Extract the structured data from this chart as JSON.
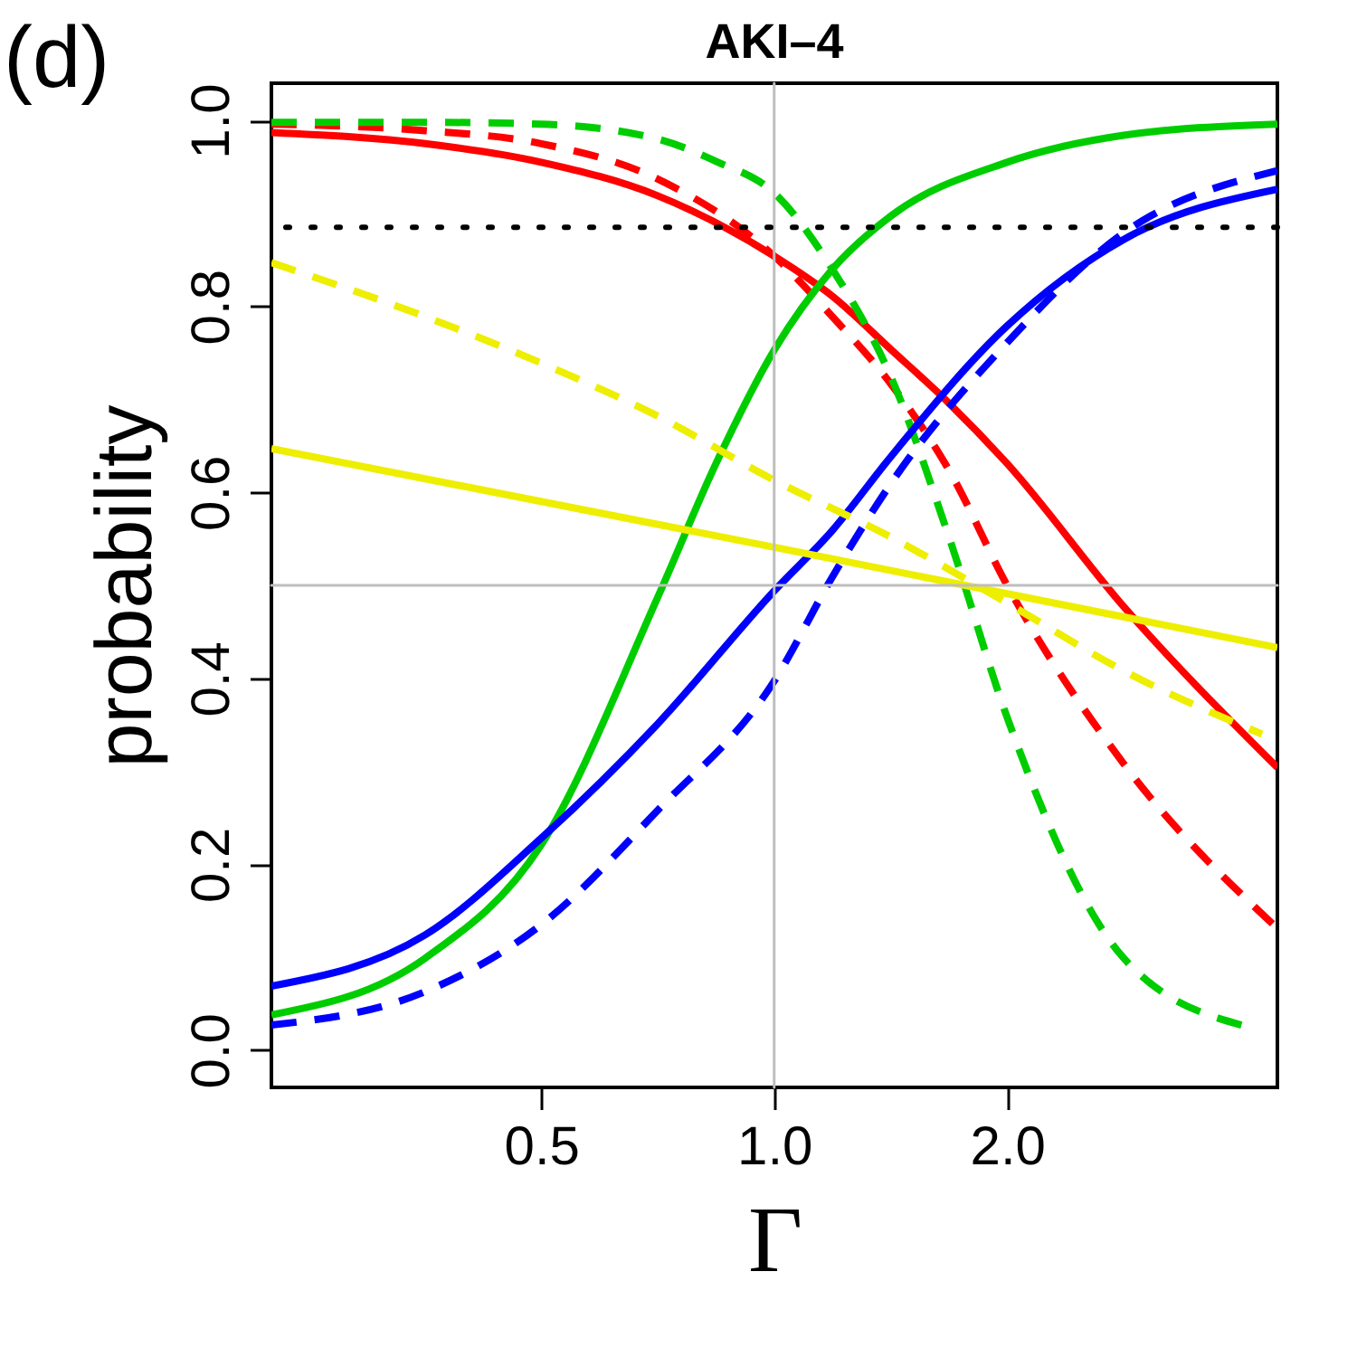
{
  "chart_data": {
    "type": "line",
    "title": "AKI–4",
    "xlabel": "Γ",
    "ylabel": "probability",
    "annotations": [
      "(d)"
    ],
    "log": "x",
    "grid": false,
    "marker": "none",
    "xlim": [
      0.224,
      4.47
    ],
    "xticks": [
      {
        "value": 0.5,
        "label": "0.5"
      },
      {
        "value": 1,
        "label": "1.0"
      },
      {
        "value": 2,
        "label": "2.0"
      }
    ],
    "ylim": [
      -0.04,
      1.04
    ],
    "yticks": [
      {
        "value": 0,
        "label": "0.0"
      },
      {
        "value": 0.2,
        "label": "0.2"
      },
      {
        "value": 0.4,
        "label": "0.4"
      },
      {
        "value": 0.6,
        "label": "0.6"
      },
      {
        "value": 0.8,
        "label": "0.8"
      },
      {
        "value": 1,
        "label": "1.0"
      }
    ],
    "ref_lines": [
      {
        "axis": "y",
        "value": 0.5,
        "label": null,
        "color": "#bebebe",
        "line_style": "solid"
      },
      {
        "axis": "x",
        "value": 1,
        "label": null,
        "color": "#bebebe",
        "line_style": "solid"
      },
      {
        "axis": "y",
        "value": 0.885,
        "label": null,
        "color": "#000000",
        "line_style": "dotted"
      }
    ],
    "series": [
      {
        "color": "#ff0000",
        "line_style": "solid",
        "x": [
          0.224,
          0.354,
          0.5,
          0.707,
          1,
          1.189,
          1.414,
          1.682,
          2,
          2.83,
          4.47
        ],
        "values": [
          0.987,
          0.975,
          0.955,
          0.919,
          0.854,
          0.811,
          0.754,
          0.696,
          0.631,
          0.477,
          0.304
        ]
      },
      {
        "color": "#ff0000",
        "line_style": "dashed",
        "x": [
          0.224,
          0.354,
          0.5,
          0.707,
          1,
          1.189,
          1.414,
          1.682,
          2,
          2.83,
          4.47
        ],
        "values": [
          0.996,
          0.989,
          0.975,
          0.937,
          0.854,
          0.789,
          0.717,
          0.624,
          0.5,
          0.308,
          0.131
        ]
      },
      {
        "color": "#00cd00",
        "line_style": "solid",
        "x": [
          0.224,
          0.354,
          0.5,
          0.707,
          0.841,
          1,
          1.189,
          1.414,
          2,
          2.83,
          4.47
        ],
        "values": [
          0.038,
          0.099,
          0.221,
          0.487,
          0.631,
          0.753,
          0.84,
          0.897,
          0.955,
          0.984,
          0.996
        ]
      },
      {
        "color": "#00cd00",
        "line_style": "dashed",
        "x": [
          0.224,
          0.354,
          0.5,
          0.707,
          0.841,
          1,
          1.189,
          1.414,
          1.682,
          2,
          2.83,
          4.06
        ],
        "values": [
          0.998,
          0.998,
          0.996,
          0.98,
          0.956,
          0.922,
          0.84,
          0.725,
          0.552,
          0.358,
          0.099,
          0.026
        ]
      },
      {
        "color": "#0000ff",
        "line_style": "solid",
        "x": [
          0.224,
          0.354,
          0.5,
          0.707,
          1,
          1.189,
          1.414,
          2,
          2.83,
          4.47
        ],
        "values": [
          0.069,
          0.124,
          0.228,
          0.351,
          0.494,
          0.559,
          0.638,
          0.779,
          0.872,
          0.926
        ]
      },
      {
        "color": "#0000ff",
        "line_style": "dashed",
        "x": [
          0.224,
          0.354,
          0.5,
          0.707,
          1,
          1.189,
          1.414,
          2,
          2.83,
          4.47
        ],
        "values": [
          0.027,
          0.063,
          0.135,
          0.258,
          0.397,
          0.509,
          0.609,
          0.761,
          0.879,
          0.946
        ]
      },
      {
        "color": "#eeee00",
        "line_style": "solid",
        "x": [
          0.224,
          1,
          4.47
        ],
        "values": [
          0.647,
          0.541,
          0.433
        ]
      },
      {
        "color": "#eeee00",
        "line_style": "dashed",
        "x": [
          0.224,
          0.354,
          0.5,
          0.707,
          1,
          1.414,
          2,
          2.83,
          4.27
        ],
        "values": [
          0.847,
          0.789,
          0.739,
          0.682,
          0.613,
          0.552,
          0.481,
          0.408,
          0.34
        ]
      }
    ]
  }
}
